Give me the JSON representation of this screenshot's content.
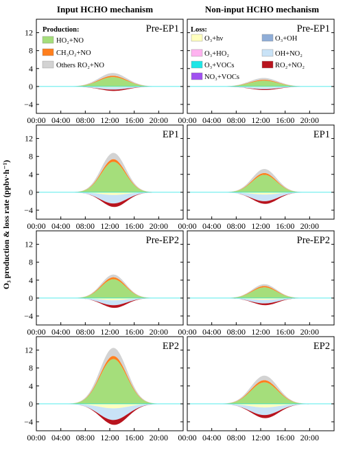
{
  "figure": {
    "column_titles": [
      "Input HCHO mechanism",
      "Non-input HCHO mechanism"
    ],
    "ylabel": "O₃ production & loss rate (ppbv·h⁻¹)"
  },
  "legend": {
    "production_title": "Production:",
    "loss_title": "Loss:",
    "production_items": [
      {
        "label": "HO₂+NO",
        "color": "#a5de7b"
      },
      {
        "label": "CH₃O₂+NO",
        "color": "#ff7f1e"
      },
      {
        "label": "Others RO₂+NO",
        "color": "#d3d3d3"
      }
    ],
    "loss_items": [
      {
        "label": "O₃+hν",
        "color": "#ffffbe"
      },
      {
        "label": "O₃+OH",
        "color": "#8fadd7"
      },
      {
        "label": "O₃+HO₂",
        "color": "#ffb3f0"
      },
      {
        "label": "OH+NO₂",
        "color": "#c9e3f7"
      },
      {
        "label": "O₃+VOCs",
        "color": "#1ee6e6"
      },
      {
        "label": "RO₂+NO₂",
        "color": "#b8141e"
      },
      {
        "label": "NO₃+VOCs",
        "color": "#a050f0"
      }
    ]
  },
  "chart_data": {
    "type": "area",
    "x_unit": "hour",
    "xticks": [
      "00:00",
      "04:00",
      "08:00",
      "12:00",
      "16:00",
      "20:00"
    ],
    "yticks": [
      -4,
      0,
      4,
      8,
      12
    ],
    "xlim": [
      0,
      24
    ],
    "ylim": [
      -6,
      15
    ],
    "grid": false,
    "legend_placement": "top (inside first row of panels)",
    "series_order_positive": [
      "HO₂+NO",
      "CH₃O₂+NO",
      "Others RO₂+NO"
    ],
    "series_order_negative": [
      "O₃+hν",
      "O₃+OH",
      "O₃+HO₂",
      "OH+NO₂",
      "O₃+VOCs",
      "RO₂+NO₂",
      "NO₃+VOCs"
    ],
    "panels": [
      {
        "period": "Pre-EP1",
        "mechanism": "Input HCHO mechanism",
        "peak_hour": 12.5,
        "width": 2.3,
        "HO2+NO": 2.1,
        "CH3O2+NO": 0.3,
        "Others RO2+NO": 0.6,
        "O3+hv": -0.2,
        "OH+NO2": -0.5,
        "RO2+NO2": -0.3
      },
      {
        "period": "Pre-EP1",
        "mechanism": "Non-input HCHO mechanism",
        "peak_hour": 12.5,
        "width": 2.3,
        "HO2+NO": 1.3,
        "CH3O2+NO": 0.2,
        "Others RO2+NO": 0.4,
        "O3+hv": -0.2,
        "OH+NO2": -0.4,
        "RO2+NO2": -0.2
      },
      {
        "period": "EP1",
        "mechanism": "Input HCHO mechanism",
        "peak_hour": 12.6,
        "width": 2.0,
        "HO2+NO": 6.8,
        "CH3O2+NO": 0.6,
        "Others RO2+NO": 1.4,
        "O3+hv": -0.6,
        "OH+NO2": -1.9,
        "RO2+NO2": -0.8
      },
      {
        "period": "EP1",
        "mechanism": "Non-input HCHO mechanism",
        "peak_hour": 12.6,
        "width": 2.0,
        "HO2+NO": 3.9,
        "CH3O2+NO": 0.4,
        "Others RO2+NO": 0.9,
        "O3+hv": -0.5,
        "OH+NO2": -1.5,
        "RO2+NO2": -0.6
      },
      {
        "period": "Pre-EP2",
        "mechanism": "Input HCHO mechanism",
        "peak_hour": 12.6,
        "width": 2.0,
        "HO2+NO": 4.2,
        "CH3O2+NO": 0.45,
        "Others RO2+NO": 0.6,
        "O3+hv": -0.5,
        "OH+NO2": -1.1,
        "RO2+NO2": -0.6
      },
      {
        "period": "Pre-EP2",
        "mechanism": "Non-input HCHO mechanism",
        "peak_hour": 12.6,
        "width": 2.0,
        "HO2+NO": 2.4,
        "CH3O2+NO": 0.3,
        "Others RO2+NO": 0.4,
        "O3+hv": -0.4,
        "OH+NO2": -0.8,
        "RO2+NO2": -0.4
      },
      {
        "period": "EP2",
        "mechanism": "Input HCHO mechanism",
        "peak_hour": 12.6,
        "width": 2.2,
        "HO2+NO": 10.0,
        "CH3O2+NO": 0.7,
        "Others RO2+NO": 1.8,
        "O3+hv": -1.0,
        "OH+NO2": -2.6,
        "RO2+NO2": -1.1
      },
      {
        "period": "EP2",
        "mechanism": "Non-input HCHO mechanism",
        "peak_hour": 12.6,
        "width": 2.2,
        "HO2+NO": 4.8,
        "CH3O2+NO": 0.5,
        "Others RO2+NO": 1.0,
        "O3+hv": -0.8,
        "OH+NO2": -1.7,
        "RO2+NO2": -0.7
      }
    ]
  }
}
